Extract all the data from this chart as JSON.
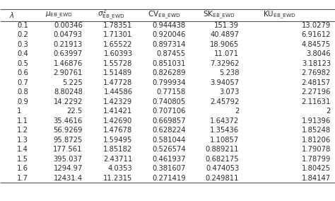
{
  "header_texts": [
    "$\\lambda$",
    "$\\mu_{\\mathrm{EB\\_EWD}}$",
    "$\\sigma^2_{\\mathrm{EB\\_EWD}}$",
    "$\\mathrm{CV}_{\\mathrm{EB\\_EWD}}$",
    "$\\mathrm{SK}_{\\mathrm{EB\\_EWD}}$",
    "$\\mathrm{KU}_{\\mathrm{EB\\_EWD}}$"
  ],
  "rows": [
    [
      "0.1",
      "0.00346",
      "1.78351",
      "0.944438",
      "151.39",
      "13.0279"
    ],
    [
      "0.2",
      "0.04793",
      "1.71301",
      "0.920046",
      "40.4897",
      "6.91612"
    ],
    [
      "0.3",
      "0.21913",
      "1.65522",
      "0.897314",
      "18.9065",
      "4.84575"
    ],
    [
      "0.4",
      "0.63997",
      "1.60393",
      "0.87455",
      "11.071",
      "3.8046"
    ],
    [
      "0.5",
      "1.46876",
      "1.55728",
      "0.851031",
      "7.32962",
      "3.18123"
    ],
    [
      "0.6",
      "2.90761",
      "1.51489",
      "0.826289",
      "5.238",
      "2.76982"
    ],
    [
      "0.7",
      "5.225",
      "1.47728",
      "0.799934",
      "3.94057",
      "2.48157"
    ],
    [
      "0.8",
      "8.80248",
      "1.44586",
      "0.77158",
      "3.073",
      "2.27196"
    ],
    [
      "0.9",
      "14.2292",
      "1.42329",
      "0.740805",
      "2.45792",
      "2.11631"
    ],
    [
      "1",
      "22.5",
      "1.41421",
      "0.707106",
      "2",
      "2"
    ],
    [
      "1.1",
      "35.4616",
      "1.42690",
      "0.669857",
      "1.64372",
      "1.91396"
    ],
    [
      "1.2",
      "56.9269",
      "1.47678",
      "0.628224",
      "1.35436",
      "1.85248"
    ],
    [
      "1.3",
      "95.8725",
      "1.59495",
      "0.581044",
      "1.10857",
      "1.81206"
    ],
    [
      "1.4",
      "177.561",
      "1.85182",
      "0.526574",
      "0.889211",
      "1.79078"
    ],
    [
      "1.5",
      "395.037",
      "2.43711",
      "0.461937",
      "0.682175",
      "1.78799"
    ],
    [
      "1.6",
      "1294.97",
      "4.0353",
      "0.381607",
      "0.474053",
      "1.80425"
    ],
    [
      "1.7",
      "12431.4",
      "11.2315",
      "0.271419",
      "0.249811",
      "1.84147"
    ]
  ],
  "text_color": "#2b2b2b",
  "line_color": "#555555",
  "figsize": [
    4.74,
    2.84
  ],
  "dpi": 100,
  "header_fontsize": 7.5,
  "row_fontsize": 7.2,
  "x_positions": [
    0.025,
    0.175,
    0.33,
    0.49,
    0.655,
    0.835
  ],
  "header_ha": [
    "left",
    "center",
    "center",
    "center",
    "center",
    "center"
  ],
  "data_x": [
    0.048,
    0.245,
    0.395,
    0.555,
    0.715,
    0.99
  ],
  "data_ha": [
    "left",
    "right",
    "right",
    "right",
    "right",
    "right"
  ]
}
